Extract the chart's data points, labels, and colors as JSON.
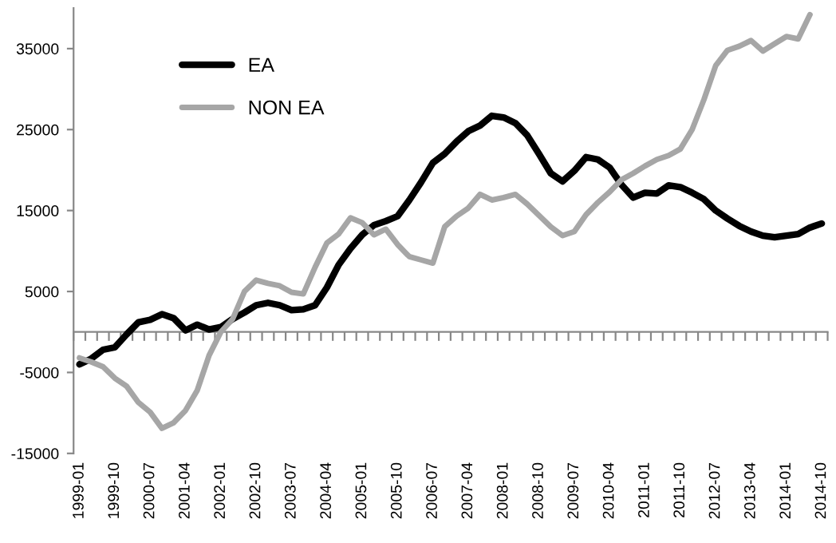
{
  "chart_data": {
    "type": "line",
    "categories": [
      "1999-01",
      null,
      null,
      "1999-10",
      null,
      null,
      "2000-07",
      null,
      null,
      "2001-04",
      null,
      null,
      "2002-01",
      null,
      null,
      "2002-10",
      null,
      null,
      "2003-07",
      null,
      null,
      "2004-04",
      null,
      null,
      "2005-01",
      null,
      null,
      "2005-10",
      null,
      null,
      "2006-07",
      null,
      null,
      "2007-04",
      null,
      null,
      "2008-01",
      null,
      null,
      "2008-10",
      null,
      null,
      "2009-07",
      null,
      null,
      "2010-04",
      null,
      null,
      "2011-01",
      null,
      null,
      "2011-10",
      null,
      null,
      "2012-07",
      null,
      null,
      "2013-04",
      null,
      null,
      "2014-01",
      null,
      null,
      "2014-10"
    ],
    "series": [
      {
        "name": "EA",
        "color": "#000000",
        "values": [
          -4000,
          -3300,
          -2200,
          -1900,
          -300,
          1200,
          1500,
          2200,
          1700,
          200,
          900,
          300,
          600,
          1600,
          2400,
          3300,
          3600,
          3300,
          2700,
          2800,
          3300,
          5500,
          8300,
          10300,
          12000,
          13200,
          13700,
          14300,
          16300,
          18500,
          20900,
          22000,
          23500,
          24800,
          25500,
          26700,
          26500,
          25800,
          24300,
          22000,
          19600,
          18600,
          19900,
          21600,
          21300,
          20300,
          18200,
          16600,
          17200,
          17100,
          18100,
          17900,
          17200,
          16400,
          15000,
          14000,
          13100,
          12400,
          11900,
          11700,
          11900,
          12100,
          12900,
          13400
        ]
      },
      {
        "name": "NON EA",
        "color": "#a6a6a6",
        "values": [
          -3200,
          -3700,
          -4300,
          -5700,
          -6700,
          -8700,
          -9900,
          -11900,
          -11200,
          -9700,
          -7200,
          -2900,
          0,
          1600,
          5000,
          6400,
          6000,
          5700,
          4900,
          4700,
          8000,
          11000,
          12100,
          14100,
          13500,
          12000,
          12700,
          10800,
          9300,
          8900,
          8500,
          13000,
          14300,
          15300,
          17000,
          16300,
          16600,
          17000,
          15800,
          14400,
          13000,
          11900,
          12400,
          14500,
          16000,
          17300,
          18800,
          19600,
          20500,
          21300,
          21800,
          22600,
          25000,
          28700,
          32900,
          34800,
          35300,
          36000,
          34700,
          35600,
          36500,
          36200,
          39200,
          null
        ]
      }
    ],
    "ylim": [
      -15000,
      40000
    ],
    "yticks": [
      -15000,
      -5000,
      5000,
      15000,
      25000,
      35000
    ],
    "legend": "top left",
    "grid": false,
    "marker": "none",
    "line_style": "solid"
  }
}
